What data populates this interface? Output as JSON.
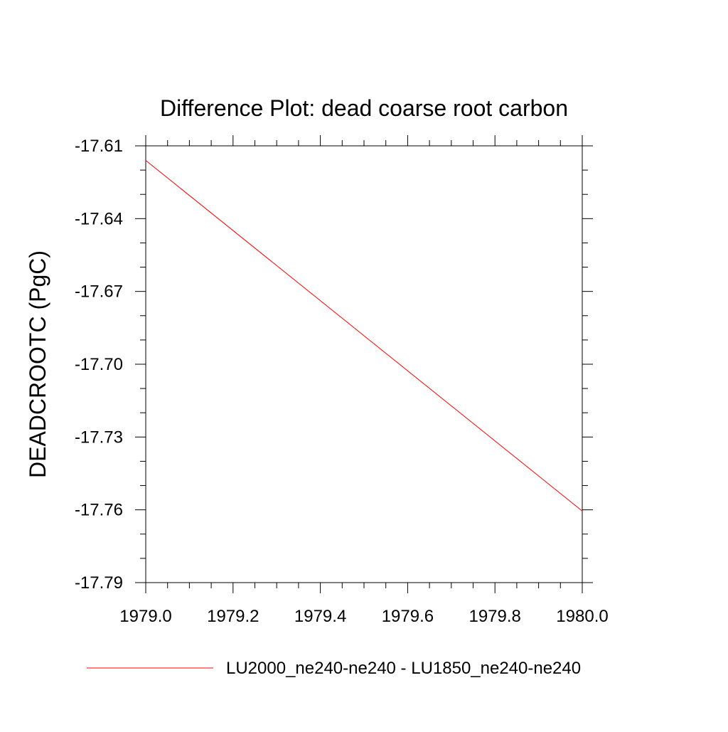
{
  "chart_data": {
    "type": "line",
    "title": "Difference Plot: dead coarse root carbon",
    "xlabel": "",
    "ylabel": "DEADCROOTC  (PgC)",
    "xlim": [
      1979.0,
      1980.0
    ],
    "ylim": [
      -17.79,
      -17.61
    ],
    "x_ticks": [
      1979.0,
      1979.2,
      1979.4,
      1979.6,
      1979.8,
      1980.0
    ],
    "x_tick_labels": [
      "1979.0",
      "1979.2",
      "1979.4",
      "1979.6",
      "1979.8",
      "1980.0"
    ],
    "y_ticks": [
      -17.61,
      -17.64,
      -17.67,
      -17.7,
      -17.73,
      -17.76,
      -17.79
    ],
    "y_tick_labels": [
      "-17.61",
      "-17.64",
      "-17.67",
      "-17.70",
      "-17.73",
      "-17.76",
      "-17.79"
    ],
    "grid": false,
    "legend_position": "bottom",
    "series": [
      {
        "name": "LU2000_ne240-ne240 - LU1850_ne240-ne240",
        "color": "#ff0000",
        "x": [
          1979.0,
          1980.0
        ],
        "y": [
          -17.616,
          -17.7605
        ]
      }
    ]
  }
}
